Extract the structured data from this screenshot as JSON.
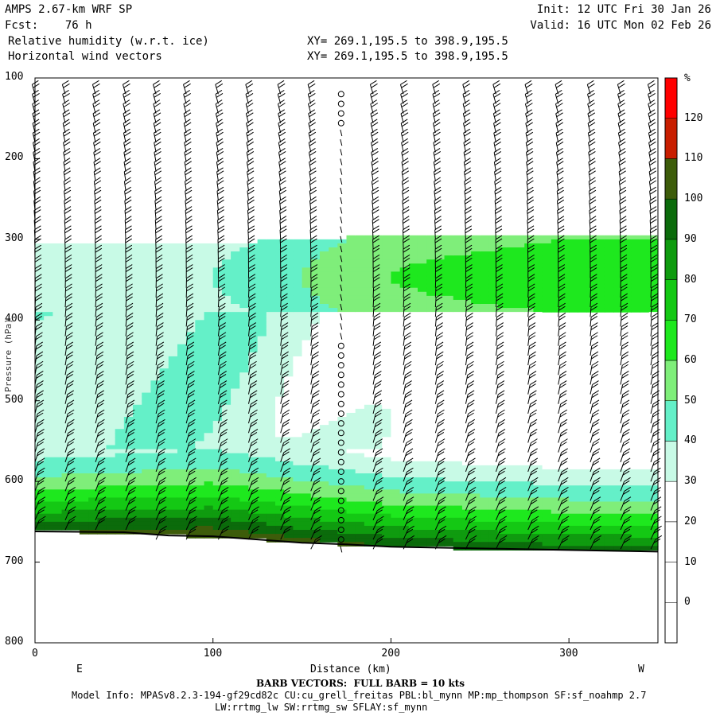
{
  "header": {
    "model": "AMPS 2.67-km WRF SP",
    "fcst": "Fcst:    76 h",
    "init": "Init: 12 UTC Fri 30 Jan 26",
    "valid": "Valid: 16 UTC Mon 02 Feb 26",
    "field1": "Relative humidity (w.r.t. ice)",
    "field2": "Horizontal wind vectors",
    "xy1": "XY= 269.1,195.5 to 398.9,195.5",
    "xy2": "XY= 269.1,195.5 to 398.9,195.5"
  },
  "footer": {
    "barb_note": "BARB VECTORS:  FULL BARB = 10 kts",
    "model_info": "Model Info: MPASv8.2.3-194-gf29cd82c CU:cu_grell_freitas PBL:bl_mynn MP:mp_thompson SF:sf_noahmp 2.7",
    "model_info2": "LW:rrtmg_lw SW:rrtmg_sw SFLAY:sf_mynn"
  },
  "chart_data": {
    "type": "heatmap",
    "xlabel": "Distance (km)",
    "ylabel": "Pressure (hPa)",
    "x_ticks": [
      0,
      100,
      200,
      300
    ],
    "y_ticks": [
      100,
      200,
      300,
      400,
      500,
      600,
      700,
      800
    ],
    "xlim": [
      0,
      350
    ],
    "ylim": [
      800,
      100
    ],
    "left_end_label": "E",
    "right_end_label": "W",
    "colorbar": {
      "unit": "%",
      "levels": [
        0,
        10,
        20,
        30,
        40,
        50,
        60,
        70,
        80,
        90,
        100,
        110,
        120
      ],
      "colors": [
        "#ffffff",
        "#ffffff",
        "#ffffff",
        "#ffffff",
        "#c8fae6",
        "#64f0c8",
        "#7fee7a",
        "#1ee81e",
        "#14c814",
        "#0f9b0f",
        "#0b6b0b",
        "#3d5c0a",
        "#c81e00",
        "#ff0000"
      ]
    },
    "terrain_pressure": [
      [
        0,
        662
      ],
      [
        50,
        663
      ],
      [
        75,
        667
      ],
      [
        100,
        668
      ],
      [
        125,
        672
      ],
      [
        150,
        676
      ],
      [
        175,
        678
      ],
      [
        200,
        681
      ],
      [
        250,
        683
      ],
      [
        300,
        685
      ],
      [
        350,
        687
      ]
    ],
    "rh_profiles": [
      {
        "x": 0,
        "p_top": 290,
        "rh_upper": 40,
        "rh_mid": 45,
        "rh_low": 80
      },
      {
        "x": 100,
        "p_top": 290,
        "rh_upper": 45,
        "rh_mid": 50,
        "rh_low": 90
      },
      {
        "x": 200,
        "p_top": 280,
        "rh_upper": 65,
        "rh_mid": 35,
        "rh_low": 80
      },
      {
        "x": 300,
        "p_top": 280,
        "rh_upper": 70,
        "rh_mid": 30,
        "rh_low": 75
      }
    ],
    "wind_barbs": {
      "x_positions": [
        0,
        17,
        34,
        51,
        68,
        85,
        103,
        120,
        138,
        155,
        172,
        190,
        207,
        225,
        242,
        259,
        277,
        294,
        312,
        329,
        346
      ],
      "calm_column_x": 172,
      "typical_speed_kts": 20
    }
  }
}
